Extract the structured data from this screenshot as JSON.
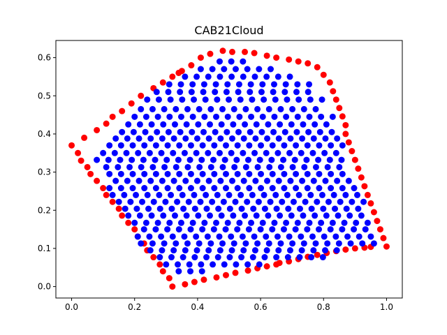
{
  "chart_data": {
    "type": "scatter",
    "title": "CAB21Cloud",
    "xlabel": "",
    "ylabel": "",
    "xlim": [
      -0.05,
      1.05
    ],
    "ylim": [
      -0.03,
      0.645
    ],
    "x_ticks": [
      0.0,
      0.2,
      0.4,
      0.6,
      0.8,
      1.0
    ],
    "x_tick_labels": [
      "0.0",
      "0.2",
      "0.4",
      "0.6",
      "0.8",
      "1.0"
    ],
    "y_ticks": [
      0.0,
      0.1,
      0.2,
      0.3,
      0.4,
      0.5,
      0.6
    ],
    "y_tick_labels": [
      "0.0",
      "0.1",
      "0.2",
      "0.3",
      "0.4",
      "0.5",
      "0.6"
    ],
    "grid": false,
    "legend": "none",
    "boundary_color": "#ff0000",
    "interior_color": "#0000ff",
    "boundary_points": [
      [
        0.0,
        0.37
      ],
      [
        0.02,
        0.35
      ],
      [
        0.03,
        0.33
      ],
      [
        0.05,
        0.313
      ],
      [
        0.06,
        0.295
      ],
      [
        0.08,
        0.277
      ],
      [
        0.1,
        0.258
      ],
      [
        0.11,
        0.24
      ],
      [
        0.13,
        0.222
      ],
      [
        0.15,
        0.204
      ],
      [
        0.16,
        0.186
      ],
      [
        0.18,
        0.167
      ],
      [
        0.2,
        0.15
      ],
      [
        0.21,
        0.131
      ],
      [
        0.23,
        0.113
      ],
      [
        0.24,
        0.095
      ],
      [
        0.26,
        0.077
      ],
      [
        0.28,
        0.058
      ],
      [
        0.29,
        0.04
      ],
      [
        0.31,
        0.022
      ],
      [
        0.32,
        0.0
      ],
      [
        0.36,
        0.006
      ],
      [
        0.39,
        0.012
      ],
      [
        0.42,
        0.018
      ],
      [
        0.46,
        0.024
      ],
      [
        0.49,
        0.03
      ],
      [
        0.52,
        0.036
      ],
      [
        0.56,
        0.042
      ],
      [
        0.59,
        0.048
      ],
      [
        0.62,
        0.053
      ],
      [
        0.65,
        0.058
      ],
      [
        0.66,
        0.062
      ],
      [
        0.69,
        0.066
      ],
      [
        0.72,
        0.072
      ],
      [
        0.75,
        0.078
      ],
      [
        0.78,
        0.083
      ],
      [
        0.81,
        0.088
      ],
      [
        0.84,
        0.093
      ],
      [
        0.87,
        0.097
      ],
      [
        0.9,
        0.1
      ],
      [
        0.93,
        0.102
      ],
      [
        0.95,
        0.104
      ],
      [
        1.0,
        0.105
      ],
      [
        0.99,
        0.127
      ],
      [
        0.98,
        0.15
      ],
      [
        0.97,
        0.172
      ],
      [
        0.96,
        0.195
      ],
      [
        0.95,
        0.218
      ],
      [
        0.94,
        0.24
      ],
      [
        0.93,
        0.263
      ],
      [
        0.92,
        0.286
      ],
      [
        0.91,
        0.309
      ],
      [
        0.9,
        0.332
      ],
      [
        0.89,
        0.355
      ],
      [
        0.88,
        0.378
      ],
      [
        0.87,
        0.4
      ],
      [
        0.87,
        0.423
      ],
      [
        0.86,
        0.446
      ],
      [
        0.85,
        0.468
      ],
      [
        0.84,
        0.49
      ],
      [
        0.83,
        0.512
      ],
      [
        0.82,
        0.535
      ],
      [
        0.8,
        0.555
      ],
      [
        0.78,
        0.575
      ],
      [
        0.75,
        0.585
      ],
      [
        0.72,
        0.59
      ],
      [
        0.69,
        0.595
      ],
      [
        0.65,
        0.6
      ],
      [
        0.62,
        0.605
      ],
      [
        0.58,
        0.612
      ],
      [
        0.55,
        0.615
      ],
      [
        0.51,
        0.615
      ],
      [
        0.48,
        0.618
      ],
      [
        0.44,
        0.61
      ],
      [
        0.41,
        0.6
      ],
      [
        0.38,
        0.58
      ],
      [
        0.35,
        0.565
      ],
      [
        0.34,
        0.56
      ],
      [
        0.32,
        0.55
      ],
      [
        0.29,
        0.535
      ],
      [
        0.26,
        0.52
      ],
      [
        0.22,
        0.5
      ],
      [
        0.19,
        0.48
      ],
      [
        0.16,
        0.46
      ],
      [
        0.13,
        0.445
      ],
      [
        0.11,
        0.427
      ],
      [
        0.08,
        0.41
      ],
      [
        0.04,
        0.39
      ]
    ],
    "interior_rows": [
      {
        "y": 0.04,
        "x_start": 0.34,
        "x_end": 0.43
      },
      {
        "y": 0.058,
        "x_start": 0.3,
        "x_end": 0.6
      },
      {
        "y": 0.077,
        "x_start": 0.28,
        "x_end": 0.81
      },
      {
        "y": 0.095,
        "x_start": 0.25,
        "x_end": 0.87
      },
      {
        "y": 0.113,
        "x_start": 0.22,
        "x_end": 0.97
      },
      {
        "y": 0.131,
        "x_start": 0.21,
        "x_end": 0.96
      },
      {
        "y": 0.15,
        "x_start": 0.23,
        "x_end": 0.95
      },
      {
        "y": 0.167,
        "x_start": 0.2,
        "x_end": 0.95
      },
      {
        "y": 0.186,
        "x_start": 0.18,
        "x_end": 0.94
      },
      {
        "y": 0.204,
        "x_start": 0.17,
        "x_end": 0.93
      },
      {
        "y": 0.222,
        "x_start": 0.15,
        "x_end": 0.93
      },
      {
        "y": 0.24,
        "x_start": 0.13,
        "x_end": 0.92
      },
      {
        "y": 0.258,
        "x_start": 0.12,
        "x_end": 0.91
      },
      {
        "y": 0.277,
        "x_start": 0.14,
        "x_end": 0.9
      },
      {
        "y": 0.295,
        "x_start": 0.12,
        "x_end": 0.89
      },
      {
        "y": 0.313,
        "x_start": 0.11,
        "x_end": 0.88
      },
      {
        "y": 0.332,
        "x_start": 0.08,
        "x_end": 0.87
      },
      {
        "y": 0.35,
        "x_start": 0.1,
        "x_end": 0.86
      },
      {
        "y": 0.37,
        "x_start": 0.12,
        "x_end": 0.86
      },
      {
        "y": 0.388,
        "x_start": 0.14,
        "x_end": 0.85
      },
      {
        "y": 0.405,
        "x_start": 0.16,
        "x_end": 0.84
      },
      {
        "y": 0.425,
        "x_start": 0.18,
        "x_end": 0.84
      },
      {
        "y": 0.445,
        "x_start": 0.2,
        "x_end": 0.83
      },
      {
        "y": 0.465,
        "x_start": 0.22,
        "x_end": 0.81
      },
      {
        "y": 0.49,
        "x_start": 0.24,
        "x_end": 0.8
      },
      {
        "y": 0.51,
        "x_start": 0.27,
        "x_end": 0.78
      },
      {
        "y": 0.53,
        "x_start": 0.31,
        "x_end": 0.76
      },
      {
        "y": 0.55,
        "x_start": 0.36,
        "x_end": 0.72
      },
      {
        "y": 0.57,
        "x_start": 0.41,
        "x_end": 0.65
      },
      {
        "y": 0.59,
        "x_start": 0.47,
        "x_end": 0.55
      }
    ],
    "interior_spacing": 0.037
  }
}
